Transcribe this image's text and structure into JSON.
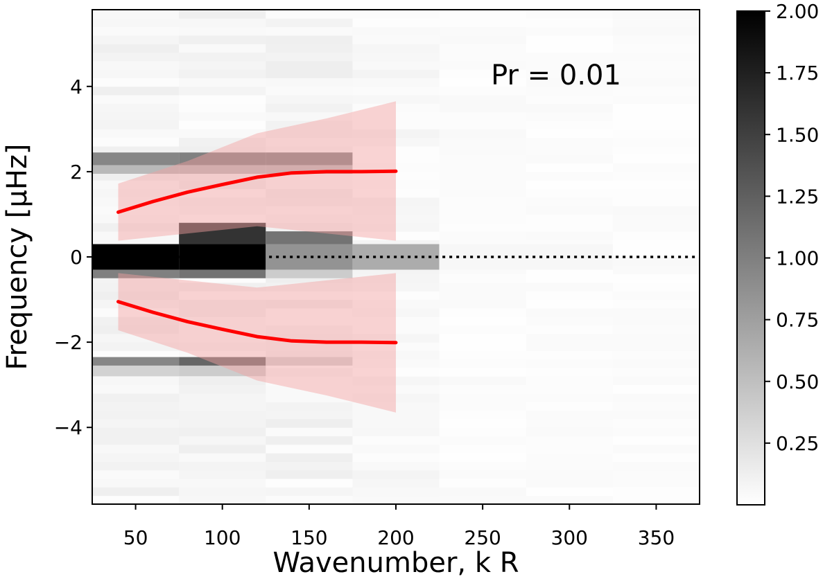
{
  "chart_data": {
    "type": "heatmap",
    "annotation": "Pr = 0.01",
    "xlabel": "Wavenumber, k R",
    "ylabel": "Frequency [μHz]",
    "xlim": [
      25,
      375
    ],
    "ylim": [
      -5.8,
      5.8
    ],
    "x_ticks": [
      50,
      100,
      150,
      200,
      250,
      300,
      350
    ],
    "y_ticks": [
      -4,
      -2,
      0,
      2,
      4
    ],
    "colorbar": {
      "range": [
        0,
        2.0
      ],
      "ticks": [
        0.25,
        0.5,
        0.75,
        1.0,
        1.25,
        1.5,
        1.75,
        2.0
      ],
      "tick_labels": [
        "0.25",
        "0.50",
        "0.75",
        "1.00",
        "1.25",
        "1.50",
        "1.75",
        "2.00"
      ],
      "colormap": "gray_r"
    },
    "heatmap": {
      "x_bin_edges": [
        25,
        75,
        125,
        175,
        225,
        275,
        325,
        375
      ],
      "features": [
        {
          "x": [
            25,
            75
          ],
          "y": [
            -0.3,
            0.3
          ],
          "value": 2.0
        },
        {
          "x": [
            75,
            125
          ],
          "y": [
            -0.3,
            0.3
          ],
          "value": 2.0
        },
        {
          "x": [
            125,
            175
          ],
          "y": [
            -0.3,
            0.3
          ],
          "value": 0.85
        },
        {
          "x": [
            175,
            225
          ],
          "y": [
            -0.3,
            0.3
          ],
          "value": 0.65
        },
        {
          "x": [
            225,
            275
          ],
          "y": [
            -0.3,
            0.3
          ],
          "value": 0.06
        },
        {
          "x": [
            275,
            325
          ],
          "y": [
            -0.3,
            0.3
          ],
          "value": 0.06
        },
        {
          "x": [
            75,
            125
          ],
          "y": [
            0.3,
            0.8
          ],
          "value": 1.6
        },
        {
          "x": [
            125,
            175
          ],
          "y": [
            0.3,
            0.6
          ],
          "value": 1.1
        },
        {
          "x": [
            25,
            75
          ],
          "y": [
            -0.5,
            -0.3
          ],
          "value": 1.0
        },
        {
          "x": [
            75,
            125
          ],
          "y": [
            -0.5,
            -0.3
          ],
          "value": 1.1
        },
        {
          "x": [
            125,
            175
          ],
          "y": [
            -0.5,
            -0.3
          ],
          "value": 0.4
        },
        {
          "x": [
            25,
            75
          ],
          "y": [
            2.15,
            2.45
          ],
          "value": 0.95
        },
        {
          "x": [
            75,
            125
          ],
          "y": [
            2.15,
            2.45
          ],
          "value": 1.0
        },
        {
          "x": [
            125,
            175
          ],
          "y": [
            2.15,
            2.45
          ],
          "value": 1.0
        },
        {
          "x": [
            25,
            75
          ],
          "y": [
            1.95,
            2.15
          ],
          "value": 0.55
        },
        {
          "x": [
            75,
            125
          ],
          "y": [
            1.95,
            2.15
          ],
          "value": 0.55
        },
        {
          "x": [
            125,
            175
          ],
          "y": [
            1.95,
            2.15
          ],
          "value": 0.55
        },
        {
          "x": [
            25,
            75
          ],
          "y": [
            -2.55,
            -2.35
          ],
          "value": 0.95
        },
        {
          "x": [
            75,
            125
          ],
          "y": [
            -2.55,
            -2.35
          ],
          "value": 1.2
        },
        {
          "x": [
            125,
            175
          ],
          "y": [
            -2.55,
            -2.35
          ],
          "value": 0.35
        },
        {
          "x": [
            25,
            75
          ],
          "y": [
            -2.8,
            -2.55
          ],
          "value": 0.35
        },
        {
          "x": [
            75,
            125
          ],
          "y": [
            -2.8,
            -2.55
          ],
          "value": 0.4
        }
      ]
    },
    "series": [
      {
        "kind": "line",
        "color": "#ff0000",
        "x": [
          40,
          60,
          80,
          100,
          120,
          140,
          160,
          180,
          200
        ],
        "y": [
          1.05,
          1.3,
          1.52,
          1.7,
          1.87,
          1.97,
          2.0,
          2.0,
          2.01
        ]
      },
      {
        "kind": "line",
        "color": "#ff0000",
        "x": [
          40,
          60,
          80,
          100,
          120,
          140,
          160,
          180,
          200
        ],
        "y": [
          -1.05,
          -1.3,
          -1.52,
          -1.7,
          -1.87,
          -1.97,
          -2.0,
          -2.0,
          -2.01
        ]
      },
      {
        "kind": "band",
        "color": "#f4a0a0",
        "x": [
          40,
          80,
          120,
          160,
          200
        ],
        "upper": [
          1.72,
          2.25,
          2.9,
          3.25,
          3.65
        ],
        "lower": [
          0.38,
          0.55,
          0.72,
          0.55,
          0.38
        ]
      },
      {
        "kind": "band",
        "color": "#f4a0a0",
        "x": [
          40,
          80,
          120,
          160,
          200
        ],
        "upper": [
          -0.38,
          -0.55,
          -0.72,
          -0.55,
          -0.38
        ],
        "lower": [
          -1.72,
          -2.25,
          -2.9,
          -3.25,
          -3.65
        ]
      }
    ],
    "reference_line": {
      "y": 0,
      "x": [
        75,
        375
      ],
      "style": "dotted"
    }
  }
}
